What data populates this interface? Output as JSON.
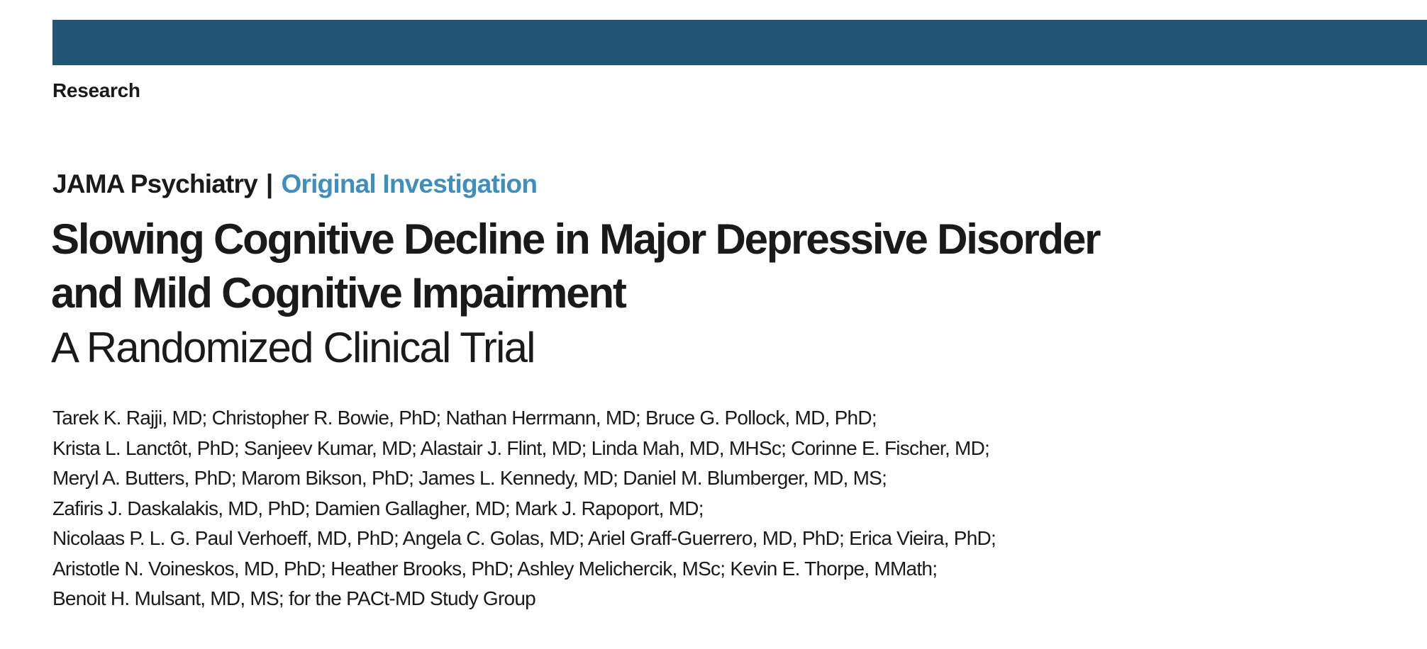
{
  "header": {
    "section_label": "Research"
  },
  "journal": {
    "name": "JAMA Psychiatry",
    "separator": "|",
    "article_type": "Original Investigation"
  },
  "article": {
    "title_lines": [
      "Slowing Cognitive Decline in Major Depressive Disorder",
      "and Mild Cognitive Impairment"
    ],
    "subtitle": "A Randomized Clinical Trial",
    "author_lines": [
      "Tarek K. Rajji, MD; Christopher R. Bowie, PhD; Nathan Herrmann, MD; Bruce G. Pollock, MD, PhD;",
      "Krista L. Lanctôt, PhD; Sanjeev Kumar, MD; Alastair J. Flint, MD; Linda Mah, MD, MHSc; Corinne E. Fischer, MD;",
      "Meryl A. Butters, PhD; Marom Bikson, PhD; James L. Kennedy, MD; Daniel M. Blumberger, MD, MS;",
      "Zafiris J. Daskalakis, MD, PhD; Damien Gallagher, MD; Mark J. Rapoport, MD;",
      "Nicolaas P. L. G. Paul Verhoeff, MD, PhD; Angela C. Golas, MD; Ariel Graff-Guerrero, MD, PhD; Erica Vieira, PhD;",
      "Aristotle N. Voineskos, MD, PhD; Heather Brooks, PhD; Ashley Melichercik, MSc; Kevin E. Thorpe, MMath;",
      "Benoit H. Mulsant, MD, MS; for the PACt-MD Study Group"
    ]
  },
  "colors": {
    "top_bar": "#225474",
    "article_type": "#3e8fbd",
    "text": "#1a1a1a"
  }
}
